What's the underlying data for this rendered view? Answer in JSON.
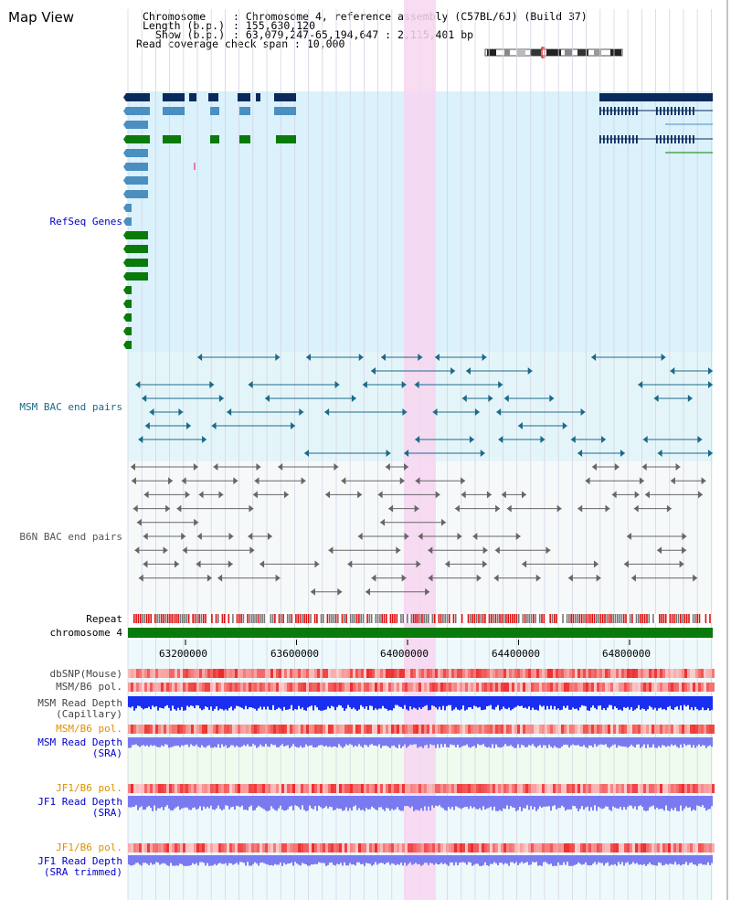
{
  "title": "Map View",
  "info": {
    "chromosome_label": "Chromosome",
    "chromosome_value": ": Chromosome 4, reference assembly (C57BL/6J) (Build 37)",
    "length_label": "Length (b.p.)",
    "length_value": ": 155,630,120",
    "show_label": "Show (b.p.)",
    "show_value": ": 63,079,247-65,194,647 : 2,115,401 bp",
    "coverage_label": "Read coverage check span",
    "coverage_value": ": 10,000"
  },
  "tracks": {
    "refseq": "RefSeq Genes",
    "msm_bac": "MSM BAC end pairs",
    "b6n_bac": "B6N BAC end pairs",
    "repeat": "Repeat",
    "chromosome": "chromosome 4",
    "dbsnp": "dbSNP(Mouse)",
    "msm_pol": "MSM/B6 pol.",
    "msm_depth_cap_1": "MSM Read Depth",
    "msm_depth_cap_2": "(Capillary)",
    "msm_pol2": "MSM/B6 pol.",
    "msm_depth_sra_1": "MSM Read Depth",
    "msm_depth_sra_2": "(SRA)",
    "jf1_pol": "JF1/B6 pol.",
    "jf1_depth_1": "JF1 Read Depth",
    "jf1_depth_2": "(SRA)",
    "jf1_pol2": "JF1/B6 pol.",
    "jf1_trim_1": "JF1 Read Depth",
    "jf1_trim_2": "(SRA trimmed)"
  },
  "axis": {
    "ticks": [
      "63200000",
      "63600000",
      "64000000",
      "64400000",
      "64800000"
    ]
  },
  "colors": {
    "refseq_bg": "#dbf1fb",
    "bac_bg": "#e4f5f9",
    "highlight": "#f7d6f0",
    "gene_dark": "#0a2a5e",
    "gene_mid": "#4a8fc0",
    "gene_green": "#0a7a0a",
    "msm_line": "#1a6a8a",
    "b6n_line": "#666666",
    "depth_blue": "#1a2ef0",
    "depth_violet": "#7a7af0",
    "label_blue": "#0000cc",
    "label_teal": "#1a6a8a",
    "label_gray": "#555555",
    "label_orange": "#e09000"
  }
}
